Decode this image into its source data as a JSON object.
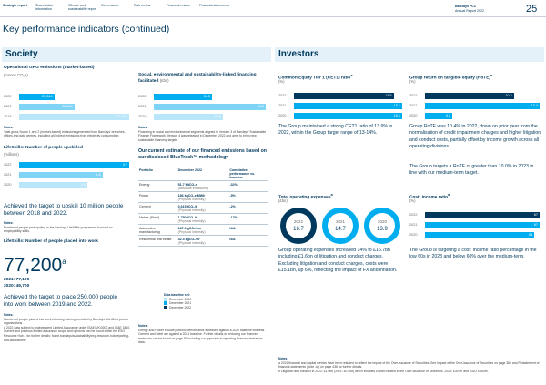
{
  "header": {
    "nav": [
      "Strategic report",
      "Shareholder information",
      "Climate and sustainability report",
      "Governance",
      "Risk review",
      "Financial review",
      "Financial statements"
    ],
    "company": "Barclays PLC",
    "report": "Annual Report 2022",
    "page": "25"
  },
  "title": "Key performance indicators (continued)",
  "society": {
    "heading": "Society",
    "ghg": {
      "title": "Operational GHG emissions (market-based)",
      "unit": "(tonnes CO₂e)",
      "rows": [
        {
          "year": "2022",
          "value": 23344,
          "label": "23,344",
          "color": "#00aeef"
        },
        {
          "year": "2021",
          "value": 36840,
          "label": "36,840",
          "color": "#7fd3f5"
        },
        {
          "year": "2018",
          "value": 73209,
          "label": "73,209",
          "color": "#b9e6f9"
        }
      ],
      "notes_heading": "Notes:",
      "notes": "Total gross Scope 1 and 2 (market-based) emissions generated from Barclays' branches, offices and data centres, including all indirect emissions from electricity consumption."
    },
    "financing": {
      "title": "Social, environmental and sustainability-linked financing facilitated",
      "unit": "(£bn)",
      "rows": [
        {
          "year": "2022",
          "value": 34.5,
          "label": "34.5",
          "color": "#00aeef"
        },
        {
          "year": "2021",
          "value": 66.2,
          "label": "66.2",
          "color": "#7fd3f5"
        },
        {
          "year": "2020",
          "value": 40.9,
          "label": "40.9",
          "color": "#b9e6f9"
        }
      ],
      "notes_heading": "Notes:",
      "notes": "Financing in social and environmental segments aligned to Version 3 of Barclays' Sustainable Finance Framework. Version 4 was released in December 2022 and aims to bring new sustainable financing targets."
    },
    "upskilled": {
      "title": "LifeSkills: Number of people upskilled",
      "unit": "(millions)",
      "rows": [
        {
          "year": "2022",
          "value": 3.7,
          "label": "3.7",
          "color": "#00aeef"
        },
        {
          "year": "2021",
          "value": 2.8,
          "label": "2.8",
          "color": "#7fd3f5"
        },
        {
          "year": "2020",
          "value": 2.3,
          "label": "2.3",
          "color": "#b9e6f9"
        }
      ],
      "statement": "Achieved the target to upskill 10 million people between 2018 and 2022.",
      "notes_heading": "Notes:",
      "notes": "Number of people participating in the Barclays LifeSkills programme focused on employability skills."
    },
    "placed": {
      "title": "LifeSkills: Number of people placed into work",
      "figure": "77,200",
      "figure_note": "a",
      "prior": [
        "2021: 77,100",
        "2020: 49,700"
      ],
      "statement": "Achieved the target to place 250,000 people into work between 2019 and 2022.",
      "notes_heading": "Notes:",
      "notes": "Number of people placed into work following training provided by Barclays' LifeSkills partner organisations.",
      "footnote": "a  2022 data subject to independent Limited Assurance under ISAE(UK)3000 and ISAE 3410. Current and previous limited assurance scope and opinions can be found within the ESG Resource Hub – for further details: home.barclays/sustainability/esg-resource-hub/reporting-and-disclosures/"
    },
    "bluetrack": {
      "title": "Our current estimate of our financed emissions based on our disclosed BlueTrack™ methodology",
      "columns": [
        "Portfolio",
        "December 2022",
        "Cumulative performance vs. baseline"
      ],
      "rows": [
        [
          "Energy",
          "51.7 MtCO₂e",
          "(Absolute emissions)",
          "-32%"
        ],
        [
          "Power",
          "186 kgCO₂e/MWh",
          "(Physical intensity)",
          "-9%"
        ],
        [
          "Cement",
          "0.615 tCO₂/t",
          "(Physical intensity)",
          "-2%"
        ],
        [
          "Metals (Steel)",
          "1.750 tCO₂/t",
          "(Physical intensity)",
          "-17%"
        ],
        [
          "Automotive manufacturing",
          "187.0 gCO₂/km",
          "(Physical intensity)",
          "N/A"
        ],
        [
          "Residential real estate",
          "32.4 kgCO₂/m²",
          "(Physical intensity)",
          "N/A"
        ]
      ],
      "baseline_heading": "Data baseline set:",
      "baselines": [
        "December 2020",
        "December 2021",
        "December 2022"
      ],
      "notes_heading": "Notes:",
      "notes": "Energy and Power include portfolio performance assessed against a 2020 baseline whereas Cement and Steel are against a 2021 baseline. Further details on reducing our financed emissions can be found on page 87 including our approach to reporting financed emissions data."
    }
  },
  "investors": {
    "heading": "Investors",
    "cet1": {
      "title": "Common Equity Tier 1 (CET1) ratio",
      "title_note": "a",
      "unit": "(%)",
      "rows": [
        {
          "year": "2022",
          "value": 13.9,
          "label": "13.9",
          "color": "#00395d"
        },
        {
          "year": "2021",
          "value": 15.1,
          "label": "15.1",
          "color": "#00aeef"
        },
        {
          "year": "2020",
          "value": 15.1,
          "label": "15.1",
          "color": "#00aeef"
        }
      ],
      "text": "The Group maintained a strong CET1 ratio of 13.9% in 2022, within the Group target range of 13-14%."
    },
    "rote": {
      "title": "Group return on tangible equity (RoTE)",
      "title_note": "a",
      "unit": "(%)",
      "rows": [
        {
          "year": "2022",
          "value": 10.4,
          "label": "10.4",
          "color": "#00395d"
        },
        {
          "year": "2021",
          "value": 13.4,
          "label": "13.4",
          "color": "#00aeef"
        },
        {
          "year": "2020",
          "value": 3.2,
          "label": "3.2",
          "color": "#00aeef"
        }
      ],
      "text": "Group RoTE was 10.4% in 2022, down on prior year from the normalisation of credit impairment charges and higher litigation and conduct costs, partially offset by income growth across all operating divisions.",
      "target": "The Group targets a RoTE of greater than 10.0% in 2023 in line with our medium-term target."
    },
    "opex": {
      "title": "Total operating expenses",
      "title_note": "a",
      "unit": "(£bn)",
      "rows": [
        {
          "year": "2022",
          "value": 16.7,
          "label": "16.7"
        },
        {
          "year": "2021",
          "value": 14.7,
          "label": "14.7"
        },
        {
          "year": "2020",
          "value": 13.9,
          "label": "13.9"
        }
      ],
      "text": "Group operating expenses increased 14% to £16.7bn including £1.6bn of litigation and conduct charges. Excluding litigation and conduct charges, costs were £15.1bn, up 6%, reflecting the impact of FX and inflation."
    },
    "cir": {
      "title": "Cost: income ratio",
      "title_note": "a",
      "unit": "(%)",
      "rows": [
        {
          "year": "2022",
          "value": 67,
          "label": "67",
          "color": "#00395d"
        },
        {
          "year": "2021",
          "value": 67,
          "label": "67",
          "color": "#00aeef"
        },
        {
          "year": "2020",
          "value": 64,
          "label": "64",
          "color": "#00aeef"
        }
      ],
      "text": "The Group is targeting a cost: income ratio percentage in the low 60s in 2023 and below 60% over the medium-term."
    },
    "notes_heading": "Notes",
    "notes": [
      "a  2021 financial and capital metrics have been restated to reflect the impact of the Over-issuance of Securities. See Impact of the Over-issuance of Securities on page 384 and Restatement of financial statements (Note 1a) on page 436 for further details.",
      "b  Litigation and conduct in 2022: £1.6bn (2021: £0.4bn) which includes £966m related to the Over-issuance of Securities. 2021: £397m and 2020: £153m."
    ]
  }
}
